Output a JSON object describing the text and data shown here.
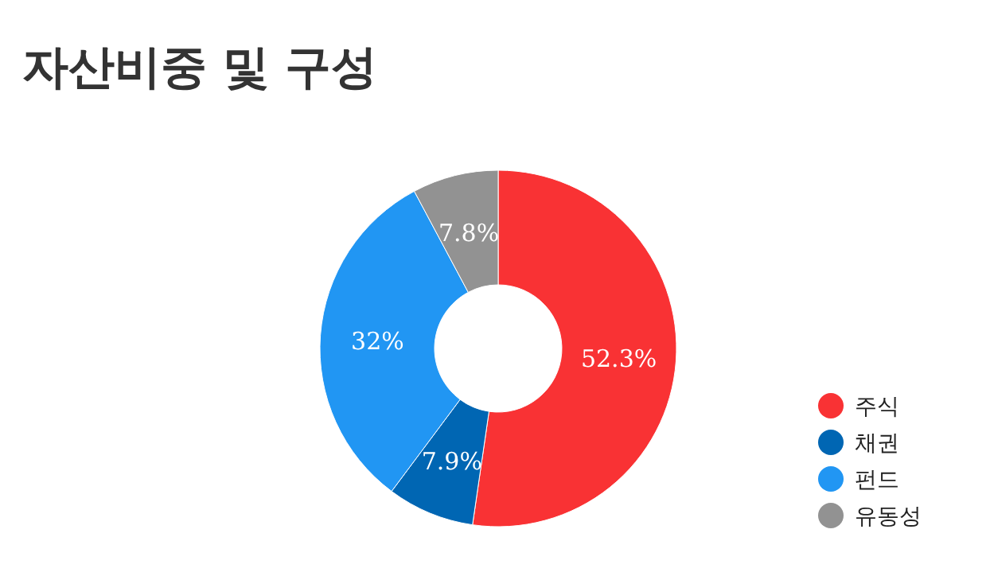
{
  "chart_data": {
    "type": "donut",
    "title": "자산비중 및 구성",
    "categories": [
      "주식",
      "채권",
      "펀드",
      "유동성"
    ],
    "values": [
      52.3,
      7.9,
      32,
      7.8
    ],
    "colors": [
      "#f93234",
      "#0066b3",
      "#2196f3",
      "#929292"
    ],
    "value_labels": [
      "52.3%",
      "7.9%",
      "32%",
      "7.8%"
    ],
    "legend": "bottom right"
  }
}
